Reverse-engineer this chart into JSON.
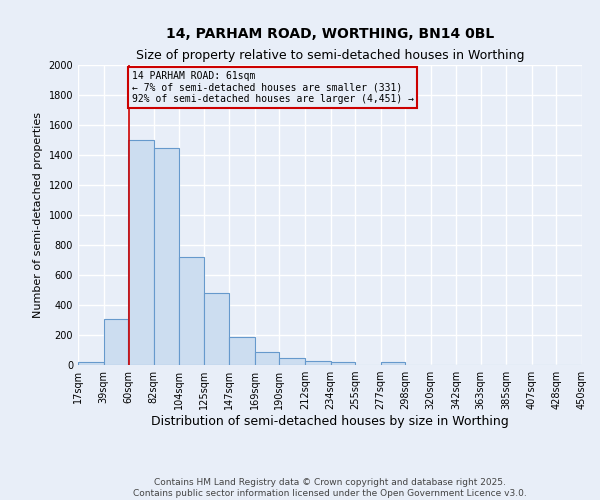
{
  "title": "14, PARHAM ROAD, WORTHING, BN14 0BL",
  "subtitle": "Size of property relative to semi-detached houses in Worthing",
  "xlabel": "Distribution of semi-detached houses by size in Worthing",
  "ylabel": "Number of semi-detached properties",
  "bar_left_edges": [
    17,
    39,
    60,
    82,
    104,
    125,
    147,
    169,
    190,
    212,
    234,
    255,
    277,
    298,
    320,
    342,
    363,
    385,
    407,
    428
  ],
  "bar_widths": [
    22,
    21,
    22,
    22,
    21,
    22,
    22,
    21,
    22,
    22,
    21,
    22,
    21,
    22,
    22,
    21,
    22,
    22,
    21,
    22
  ],
  "bar_heights": [
    20,
    310,
    1500,
    1450,
    720,
    480,
    190,
    90,
    45,
    25,
    20,
    0,
    20,
    0,
    0,
    0,
    0,
    0,
    0,
    0
  ],
  "bar_color": "#ccddf0",
  "bar_edgecolor": "#6699cc",
  "ylim": [
    0,
    2000
  ],
  "yticks": [
    0,
    200,
    400,
    600,
    800,
    1000,
    1200,
    1400,
    1600,
    1800,
    2000
  ],
  "xtick_labels": [
    "17sqm",
    "39sqm",
    "60sqm",
    "82sqm",
    "104sqm",
    "125sqm",
    "147sqm",
    "169sqm",
    "190sqm",
    "212sqm",
    "234sqm",
    "255sqm",
    "277sqm",
    "298sqm",
    "320sqm",
    "342sqm",
    "363sqm",
    "385sqm",
    "407sqm",
    "428sqm",
    "450sqm"
  ],
  "xtick_positions": [
    17,
    39,
    60,
    82,
    104,
    125,
    147,
    169,
    190,
    212,
    234,
    255,
    277,
    298,
    320,
    342,
    363,
    385,
    407,
    428,
    450
  ],
  "vline_x": 61,
  "vline_color": "#cc0000",
  "annotation_text": "14 PARHAM ROAD: 61sqm\n← 7% of semi-detached houses are smaller (331)\n92% of semi-detached houses are larger (4,451) →",
  "annotation_box_color": "#cc0000",
  "background_color": "#e8eef8",
  "grid_color": "#ffffff",
  "footer_line1": "Contains HM Land Registry data © Crown copyright and database right 2025.",
  "footer_line2": "Contains public sector information licensed under the Open Government Licence v3.0.",
  "title_fontsize": 10,
  "subtitle_fontsize": 9,
  "ylabel_fontsize": 8,
  "xlabel_fontsize": 9,
  "tick_fontsize": 7,
  "footer_fontsize": 6.5
}
